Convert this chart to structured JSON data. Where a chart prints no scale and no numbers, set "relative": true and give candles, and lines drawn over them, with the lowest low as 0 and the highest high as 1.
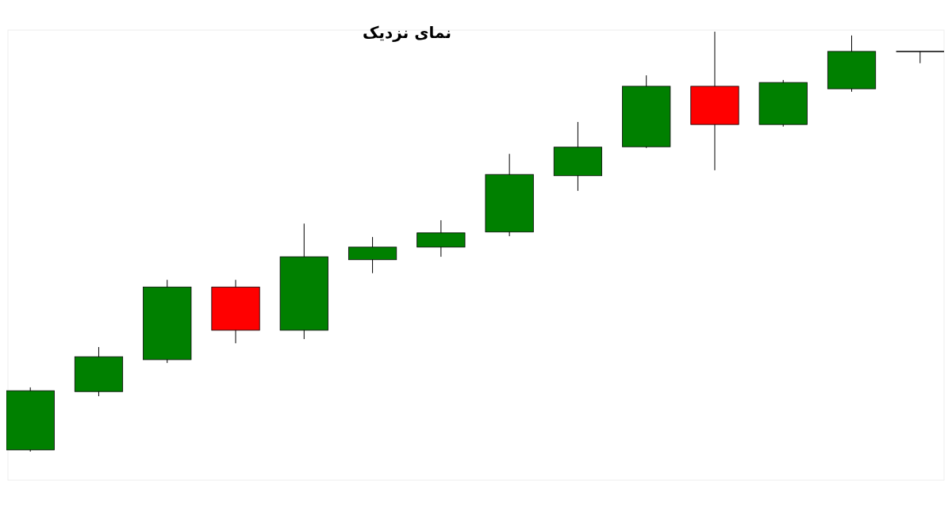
{
  "chart_data": {
    "type": "candlestick",
    "title": "نمای نزدیک",
    "relative": true,
    "categories": [
      null,
      null,
      null,
      null,
      null,
      null,
      null,
      null,
      null,
      null,
      null,
      null,
      null,
      null
    ],
    "ohlc": [
      [
        0.004,
        0.153,
        0,
        0.145
      ],
      [
        0.143,
        0.249,
        0.132,
        0.226
      ],
      [
        0.219,
        0.409,
        0.211,
        0.392
      ],
      [
        0.392,
        0.409,
        0.258,
        0.289
      ],
      [
        0.289,
        0.543,
        0.268,
        0.464
      ],
      [
        0.457,
        0.511,
        0.425,
        0.487
      ],
      [
        0.487,
        0.551,
        0.464,
        0.521
      ],
      [
        0.523,
        0.709,
        0.513,
        0.66
      ],
      [
        0.657,
        0.785,
        0.621,
        0.725
      ],
      [
        0.726,
        0.896,
        0.723,
        0.87
      ],
      [
        0.87,
        1,
        0.67,
        0.779
      ],
      [
        0.779,
        0.885,
        0.774,
        0.879
      ],
      [
        0.864,
        0.991,
        0.857,
        0.953
      ],
      [
        0.953,
        0.953,
        0.925,
        0.953
      ]
    ],
    "colors": [
      "#008000",
      "#008000",
      "#008000",
      "#ff0000",
      "#008000",
      "#008000",
      "#008000",
      "#008000",
      "#008000",
      "#008000",
      "#ff0000",
      "#008000",
      "#008000",
      "#000000"
    ]
  }
}
